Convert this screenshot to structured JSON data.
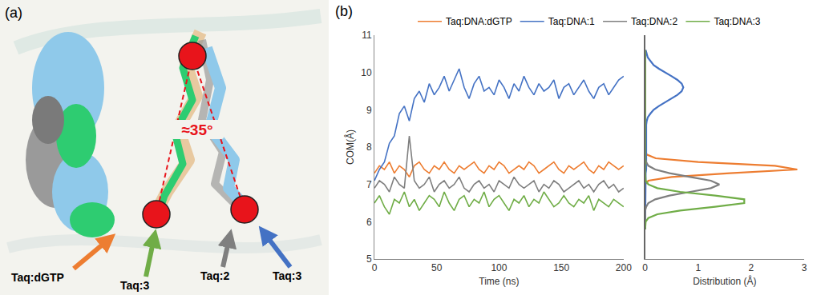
{
  "diagram": {
    "panel_label": "(a)",
    "angle_label": "≈35°",
    "arrows": [
      {
        "label": "Taq:dGTP",
        "color": "#ED7D31"
      },
      {
        "label": "Taq:3",
        "color": "#70AD47"
      },
      {
        "label": "Taq:2",
        "color": "#7F7F7F"
      },
      {
        "label": "Taq:3",
        "color": "#4472C4"
      }
    ]
  },
  "panel_b": {
    "panel_label": "(b)"
  },
  "chart_data": [
    {
      "type": "line",
      "xlabel": "Time (ns)",
      "ylabel": "COM(Å)",
      "x": [
        0,
        4,
        8,
        12,
        16,
        20,
        24,
        28,
        32,
        36,
        40,
        44,
        48,
        52,
        56,
        60,
        64,
        68,
        72,
        76,
        80,
        84,
        88,
        92,
        96,
        100,
        104,
        108,
        112,
        116,
        120,
        124,
        128,
        132,
        136,
        140,
        144,
        148,
        152,
        156,
        160,
        164,
        168,
        172,
        176,
        180,
        184,
        188,
        192,
        196,
        200
      ],
      "xlim": [
        0,
        200
      ],
      "xticks": [
        0,
        50,
        100,
        150,
        200
      ],
      "ylim": [
        5,
        11
      ],
      "yticks": [
        5,
        6,
        7,
        8,
        9,
        10,
        11
      ],
      "grid": false,
      "legend": "top",
      "series": [
        {
          "name": "Taq:DNA:dGTP",
          "color": "#ED7D31",
          "line_style": "solid",
          "values": [
            7.3,
            7.5,
            7.4,
            7.6,
            7.3,
            7.5,
            7.4,
            7.2,
            7.5,
            7.6,
            7.4,
            7.3,
            7.5,
            7.4,
            7.6,
            7.4,
            7.3,
            7.5,
            7.4,
            7.5,
            7.6,
            7.4,
            7.3,
            7.5,
            7.4,
            7.6,
            7.5,
            7.3,
            7.4,
            7.5,
            7.4,
            7.6,
            7.5,
            7.3,
            7.4,
            7.5,
            7.6,
            7.4,
            7.3,
            7.5,
            7.4,
            7.5,
            7.6,
            7.4,
            7.3,
            7.5,
            7.4,
            7.6,
            7.5,
            7.4,
            7.5
          ]
        },
        {
          "name": "Taq:DNA:1",
          "color": "#4472C4",
          "line_style": "solid",
          "values": [
            7.1,
            7.4,
            7.6,
            8.1,
            8.3,
            8.9,
            9.1,
            8.7,
            9.3,
            9.5,
            9.2,
            9.7,
            9.4,
            9.6,
            9.9,
            9.5,
            9.8,
            10.1,
            9.6,
            9.3,
            9.7,
            9.9,
            9.5,
            9.6,
            9.4,
            9.8,
            9.6,
            9.3,
            9.7,
            9.5,
            9.9,
            9.6,
            9.4,
            9.7,
            9.5,
            9.6,
            9.8,
            9.3,
            9.6,
            9.7,
            9.4,
            9.6,
            9.8,
            9.5,
            9.3,
            9.6,
            9.7,
            9.4,
            9.6,
            9.8,
            9.9
          ]
        },
        {
          "name": "Taq:DNA:2",
          "color": "#7F7F7F",
          "line_style": "solid",
          "values": [
            6.9,
            7.1,
            7.0,
            6.8,
            7.2,
            7.0,
            6.9,
            8.3,
            7.1,
            6.9,
            7.0,
            7.2,
            6.8,
            7.0,
            7.1,
            6.9,
            7.0,
            7.2,
            6.9,
            6.8,
            7.0,
            7.1,
            6.9,
            7.0,
            6.8,
            7.1,
            7.0,
            6.9,
            7.2,
            7.0,
            6.9,
            7.0,
            7.1,
            6.8,
            7.0,
            6.9,
            7.1,
            7.0,
            6.8,
            6.9,
            7.0,
            7.1,
            6.9,
            7.0,
            6.8,
            7.0,
            7.1,
            6.9,
            7.0,
            6.8,
            6.9
          ]
        },
        {
          "name": "Taq:DNA:3",
          "color": "#70AD47",
          "line_style": "solid",
          "values": [
            6.5,
            6.7,
            6.4,
            6.2,
            6.6,
            6.5,
            6.8,
            6.4,
            6.6,
            6.3,
            6.5,
            6.7,
            6.6,
            6.4,
            6.8,
            6.5,
            6.3,
            6.6,
            6.7,
            6.4,
            6.6,
            6.5,
            6.8,
            6.4,
            6.6,
            6.7,
            6.5,
            6.3,
            6.6,
            6.5,
            6.7,
            6.4,
            6.6,
            6.5,
            6.8,
            6.6,
            6.4,
            6.5,
            6.7,
            6.5,
            6.4,
            6.6,
            6.5,
            6.7,
            6.3,
            6.6,
            6.5,
            6.4,
            6.6,
            6.5,
            6.4
          ]
        }
      ]
    },
    {
      "type": "line",
      "orientation": "horizontal",
      "xlabel": "Distribution (Å)",
      "y": [
        5.8,
        5.9,
        6.0,
        6.1,
        6.2,
        6.3,
        6.4,
        6.5,
        6.6,
        6.7,
        6.8,
        6.9,
        7.0,
        7.1,
        7.2,
        7.3,
        7.4,
        7.5,
        7.6,
        7.7,
        7.8,
        7.9,
        8.0,
        8.1,
        8.2,
        8.3,
        8.4,
        8.5,
        8.6,
        8.7,
        8.8,
        8.9,
        9.0,
        9.1,
        9.2,
        9.3,
        9.4,
        9.5,
        9.6,
        9.7,
        9.8,
        9.9,
        10.0,
        10.1,
        10.2,
        10.3,
        10.4,
        10.5,
        10.6
      ],
      "xlim": [
        0,
        3
      ],
      "xticks": [
        0,
        1,
        2,
        3
      ],
      "ylim": [
        5,
        11
      ],
      "grid": false,
      "tick_labels": "x",
      "series": [
        {
          "name": "Taq:DNA:dGTP",
          "color": "#ED7D31",
          "line_style": "solid",
          "values": [
            0,
            0,
            0,
            0,
            0,
            0,
            0,
            0,
            0,
            0,
            0,
            0,
            0,
            0.06,
            0.5,
            1.6,
            2.87,
            2.45,
            1.0,
            0.2,
            0.03,
            0,
            0,
            0,
            0,
            0,
            0,
            0,
            0,
            0,
            0,
            0,
            0,
            0,
            0,
            0,
            0,
            0,
            0,
            0,
            0,
            0,
            0,
            0,
            0,
            0,
            0,
            0,
            0
          ]
        },
        {
          "name": "Taq:DNA:1",
          "color": "#4472C4",
          "line_style": "solid",
          "values": [
            0,
            0,
            0,
            0,
            0,
            0,
            0,
            0,
            0,
            0,
            0,
            0,
            0,
            0,
            0.01,
            0.01,
            0.02,
            0.02,
            0.02,
            0.02,
            0.02,
            0.02,
            0.01,
            0.01,
            0.01,
            0.01,
            0.01,
            0.01,
            0.02,
            0.03,
            0.05,
            0.1,
            0.16,
            0.26,
            0.37,
            0.5,
            0.61,
            0.69,
            0.72,
            0.69,
            0.61,
            0.5,
            0.37,
            0.26,
            0.16,
            0.1,
            0.05,
            0.03,
            0.01
          ]
        },
        {
          "name": "Taq:DNA:2",
          "color": "#7F7F7F",
          "line_style": "solid",
          "values": [
            0,
            0,
            0,
            0,
            0,
            0,
            0.02,
            0.06,
            0.19,
            0.46,
            0.85,
            1.24,
            1.4,
            1.24,
            0.85,
            0.46,
            0.19,
            0.06,
            0.02,
            0,
            0,
            0,
            0,
            0,
            0,
            0,
            0,
            0,
            0,
            0,
            0,
            0,
            0,
            0,
            0,
            0,
            0,
            0,
            0,
            0,
            0,
            0,
            0,
            0,
            0,
            0,
            0,
            0,
            0
          ]
        },
        {
          "name": "Taq:DNA:3",
          "color": "#70AD47",
          "line_style": "solid",
          "values": [
            0,
            0,
            0.01,
            0.06,
            0.23,
            0.66,
            1.32,
            1.87,
            1.87,
            1.32,
            0.66,
            0.23,
            0.06,
            0.01,
            0,
            0,
            0,
            0,
            0,
            0,
            0,
            0,
            0,
            0,
            0,
            0,
            0,
            0,
            0,
            0,
            0,
            0,
            0,
            0,
            0,
            0,
            0,
            0,
            0,
            0,
            0,
            0,
            0,
            0,
            0,
            0,
            0,
            0,
            0
          ]
        }
      ]
    }
  ]
}
